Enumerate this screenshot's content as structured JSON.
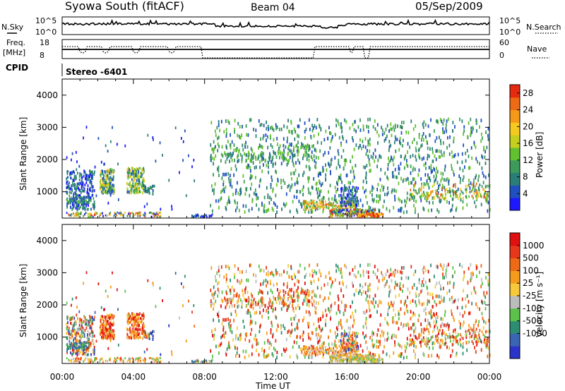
{
  "header": {
    "station": "Syowa South (fitACF)",
    "beam": "Beam 04",
    "date": "05/Sep/2009"
  },
  "noise_strip": {
    "left_label": "N.Sky",
    "right_label": "N.Search",
    "left_ticks": [
      "10^5",
      "10^0"
    ],
    "right_ticks": [
      "10^5",
      "10^0"
    ]
  },
  "freq_strip": {
    "left_label_1": "Freq.",
    "left_label_2": "[MHz]",
    "left_ticks": [
      "18",
      "8"
    ],
    "right_label": "Nave",
    "right_ticks": [
      "60",
      "0"
    ]
  },
  "cpid": {
    "label": "CPID",
    "value": "Stereo -6401"
  },
  "chart_data": [
    {
      "type": "heatmap",
      "name": "power",
      "ylabel": "Slant Range [km]",
      "ylim": [
        180,
        4500
      ],
      "yticks": [
        "1000",
        "2000",
        "3000",
        "4000"
      ],
      "xticks": [
        "00:00",
        "04:00",
        "08:00",
        "12:00",
        "16:00",
        "20:00",
        "00:00"
      ],
      "colorbar": {
        "label": "Power [dB]",
        "ticks": [
          "4",
          "8",
          "12",
          "16",
          "20",
          "24",
          "28"
        ],
        "range": [
          0,
          30
        ],
        "colors": [
          "#1e18ff",
          "#2050c0",
          "#2b7e78",
          "#3c9a5a",
          "#62c12e",
          "#c4cf1e",
          "#f6c91f",
          "#f59a18",
          "#ee6a14",
          "#e62a10"
        ]
      }
    },
    {
      "type": "heatmap",
      "name": "velocity",
      "ylabel": "Slant Range [km]",
      "ylim": [
        180,
        4500
      ],
      "yticks": [
        "1000",
        "2000",
        "3000",
        "4000"
      ],
      "xticks": [
        "00:00",
        "04:00",
        "08:00",
        "12:00",
        "16:00",
        "20:00",
        "00:00"
      ],
      "xlabel": "Time UT",
      "colorbar": {
        "label": "Velocity [m s⁻¹]",
        "ticks": [
          "1000",
          "500",
          "100",
          "25",
          "-25",
          "-100",
          "-500",
          "-1000"
        ],
        "colors": [
          "#2a34c8",
          "#3a64b4",
          "#2e8c72",
          "#5cc04a",
          "#bcbcbc",
          "#f6c83a",
          "#f59b1c",
          "#ef6a16",
          "#e8371a",
          "#e01010"
        ]
      }
    }
  ]
}
